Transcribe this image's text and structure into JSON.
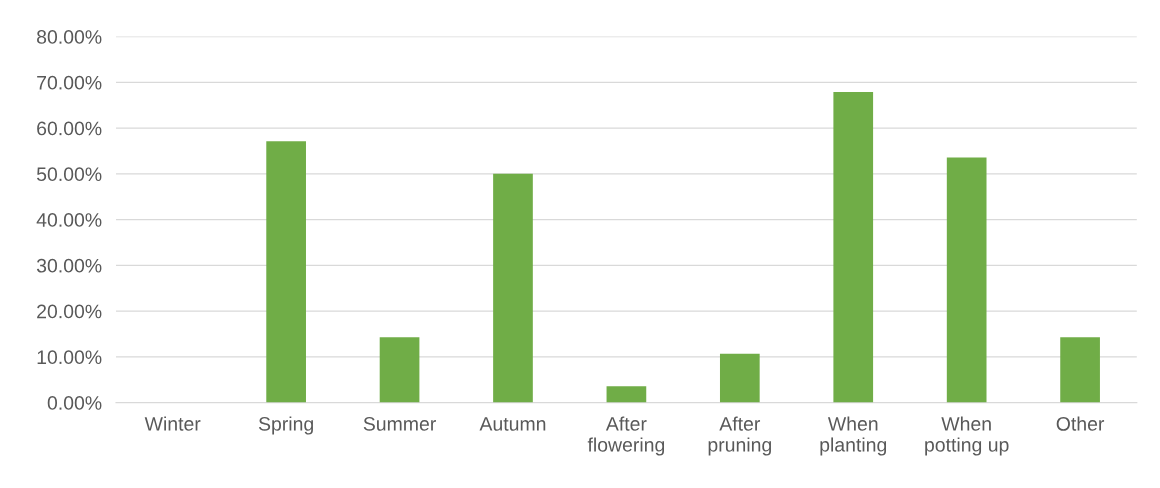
{
  "chart_data": {
    "type": "bar",
    "categories": [
      "Winter",
      "Spring",
      "Summer",
      "Autumn",
      "After\nflowering",
      "After\npruning",
      "When\nplanting",
      "When\npotting up",
      "Other"
    ],
    "values": [
      0,
      57.1,
      14.3,
      50,
      3.6,
      10.7,
      67.9,
      53.6,
      14.3
    ],
    "color": "#70ad47",
    "ylim": [
      0,
      80
    ],
    "yticks": [
      {
        "value": 0,
        "label": "0.00%"
      },
      {
        "value": 10,
        "label": "10.00%"
      },
      {
        "value": 20,
        "label": "20.00%"
      },
      {
        "value": 30,
        "label": "30.00%"
      },
      {
        "value": 40,
        "label": "40.00%"
      },
      {
        "value": 50,
        "label": "50.00%"
      },
      {
        "value": 60,
        "label": "60.00%"
      },
      {
        "value": 70,
        "label": "70.00%"
      },
      {
        "value": 80,
        "label": "80.00%"
      }
    ],
    "grid": "y"
  }
}
